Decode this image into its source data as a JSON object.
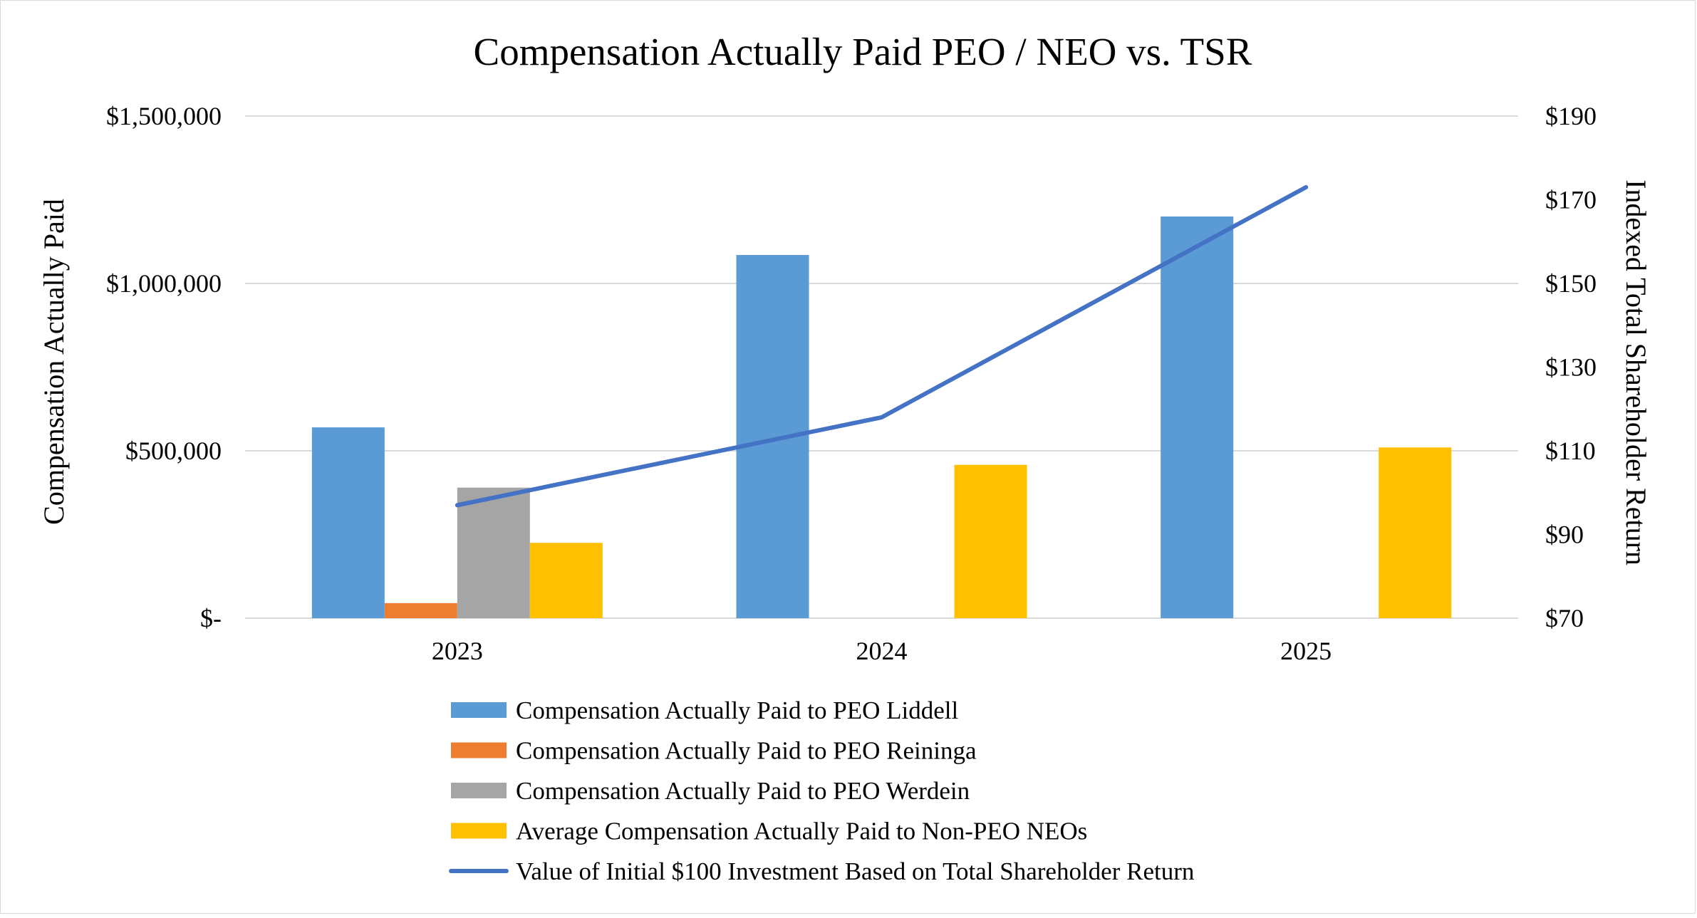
{
  "chart_data": {
    "type": "bar",
    "title": "Compensation Actually Paid PEO / NEO vs. TSR",
    "categories": [
      "2023",
      "2024",
      "2025"
    ],
    "ylabel": "Compensation Actually Paid",
    "y2label": "Indexed Total Shareholder Return",
    "ylim": [
      0,
      1500000
    ],
    "y2lim": [
      70,
      190
    ],
    "yticks": [
      {
        "value": 0,
        "label": "$-"
      },
      {
        "value": 500000,
        "label": "$500,000"
      },
      {
        "value": 1000000,
        "label": "$1,000,000"
      },
      {
        "value": 1500000,
        "label": "$1,500,000"
      }
    ],
    "y2ticks": [
      {
        "value": 70,
        "label": "$70"
      },
      {
        "value": 90,
        "label": "$90"
      },
      {
        "value": 110,
        "label": "$110"
      },
      {
        "value": 130,
        "label": "$130"
      },
      {
        "value": 150,
        "label": "$150"
      },
      {
        "value": 170,
        "label": "$170"
      },
      {
        "value": 190,
        "label": "$190"
      }
    ],
    "grid": true,
    "legend_position": "bottom",
    "series": [
      {
        "name": "Compensation Actually Paid to PEO Liddell",
        "kind": "bar",
        "axis": "left",
        "color": "#5B9BD5",
        "values": [
          570000,
          1085000,
          1200000
        ]
      },
      {
        "name": "Compensation Actually Paid to PEO Reininga",
        "kind": "bar",
        "axis": "left",
        "color": "#ED7D31",
        "values": [
          45000,
          null,
          null
        ]
      },
      {
        "name": "Compensation Actually Paid to PEO Werdein",
        "kind": "bar",
        "axis": "left",
        "color": "#A5A5A5",
        "values": [
          390000,
          null,
          null
        ]
      },
      {
        "name": "Average Compensation Actually Paid to Non-PEO NEOs",
        "kind": "bar",
        "axis": "left",
        "color": "#FFC000",
        "values": [
          225000,
          458000,
          510000
        ]
      },
      {
        "name": "Value of Initial $100 Investment Based on Total Shareholder Return",
        "kind": "line",
        "axis": "right",
        "color": "#4472C4",
        "values": [
          97,
          118,
          173
        ]
      }
    ]
  }
}
